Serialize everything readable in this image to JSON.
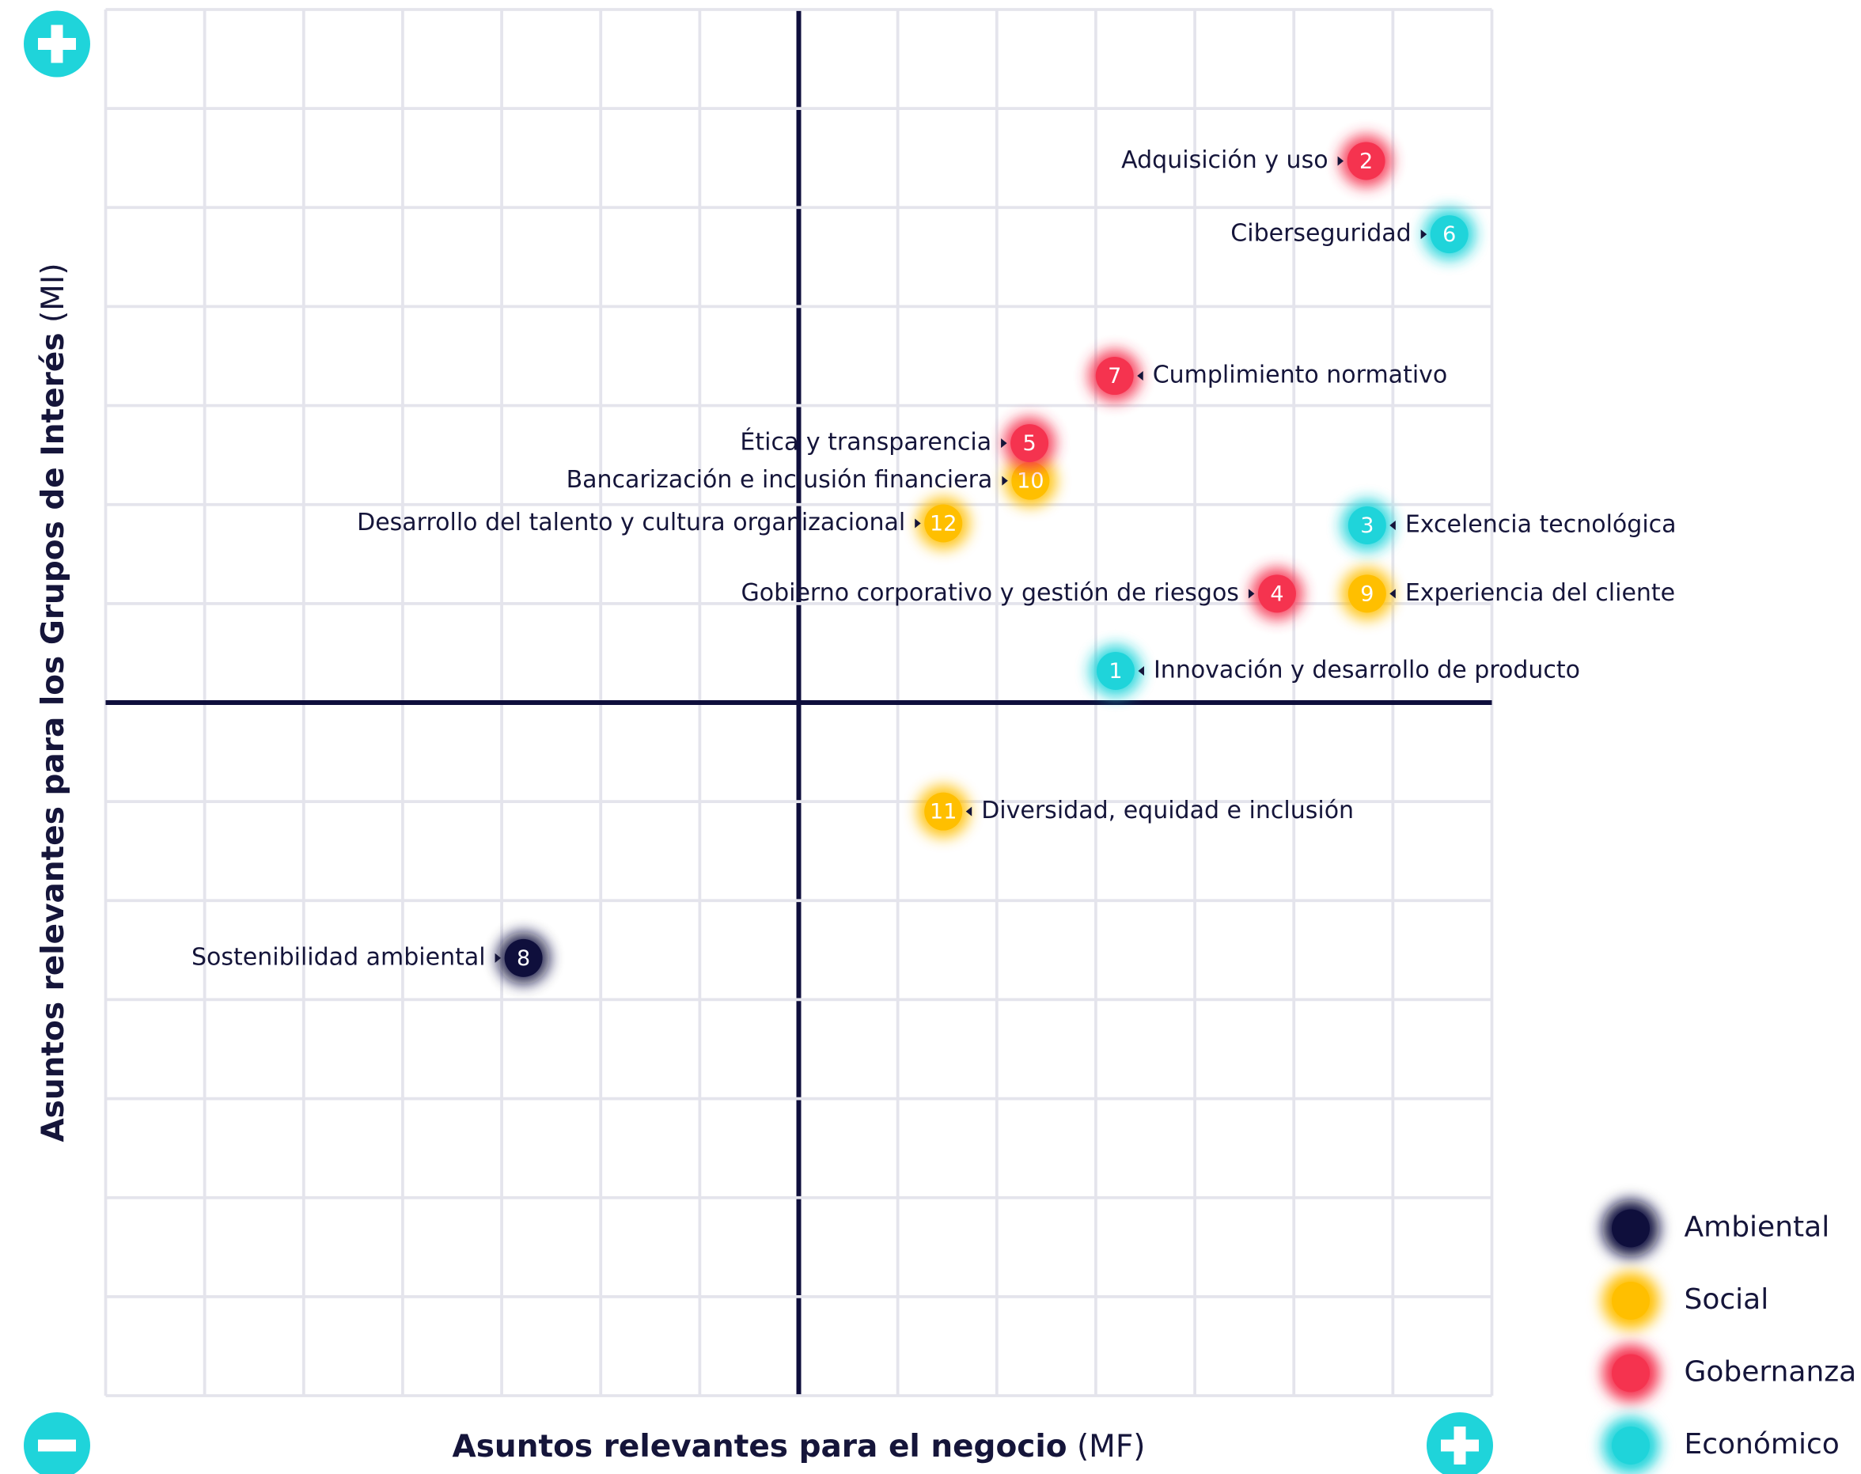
{
  "chart_data": {
    "type": "scatter",
    "xlabel": "Asuntos relevantes para el negocio",
    "xlabel_abbr": "(MF)",
    "ylabel": "Asuntos relevantes para los Grupos de Interés",
    "ylabel_abbr": "(MI)",
    "xlim": [
      0,
      14
    ],
    "ylim": [
      0,
      14
    ],
    "xticks": [
      0,
      1,
      2,
      3,
      4,
      5,
      6,
      7,
      8,
      9,
      10,
      11,
      12,
      13,
      14
    ],
    "yticks": [
      0,
      1,
      2,
      3,
      4,
      5,
      6,
      7,
      8,
      9,
      10,
      11,
      12,
      13,
      14
    ],
    "grid": true,
    "series": [
      {
        "name": "Ambiental",
        "color": "#0f0f3c",
        "ids": [
          "8"
        ],
        "labels": [
          "Sostenibilidad ambiental"
        ],
        "x": [
          4.22
        ],
        "y": [
          4.42
        ]
      },
      {
        "name": "Social",
        "color": "#ffbf00",
        "ids": [
          "9",
          "10",
          "11",
          "12"
        ],
        "labels": [
          "Experiencia del cliente",
          "Bancarización e inclusión financiera",
          "Diversidad, equidad e inclusión",
          "Desarrollo del talento y cultura organizacional"
        ],
        "x": [
          12.74,
          9.34,
          8.46,
          8.46
        ],
        "y": [
          8.1,
          9.24,
          5.9,
          8.81
        ]
      },
      {
        "name": "Gobernanza",
        "color": "#f5334f",
        "ids": [
          "2",
          "4",
          "5",
          "7"
        ],
        "labels": [
          "Adquisición y uso",
          "Gobierno corporativo y gestión de riesgos",
          "Ética y transparencia",
          "Cumplimiento normativo"
        ],
        "x": [
          12.73,
          11.83,
          9.33,
          10.19
        ],
        "y": [
          12.47,
          8.1,
          9.62,
          10.3
        ]
      },
      {
        "name": "Económico",
        "color": "#1fd4da",
        "ids": [
          "1",
          "3",
          "6"
        ],
        "labels": [
          "Innovación y desarrollo de producto",
          "Excelencia tecnológica",
          "Ciberseguridad"
        ],
        "x": [
          10.2,
          12.74,
          13.57
        ],
        "y": [
          7.32,
          8.79,
          11.73
        ]
      }
    ]
  }
}
